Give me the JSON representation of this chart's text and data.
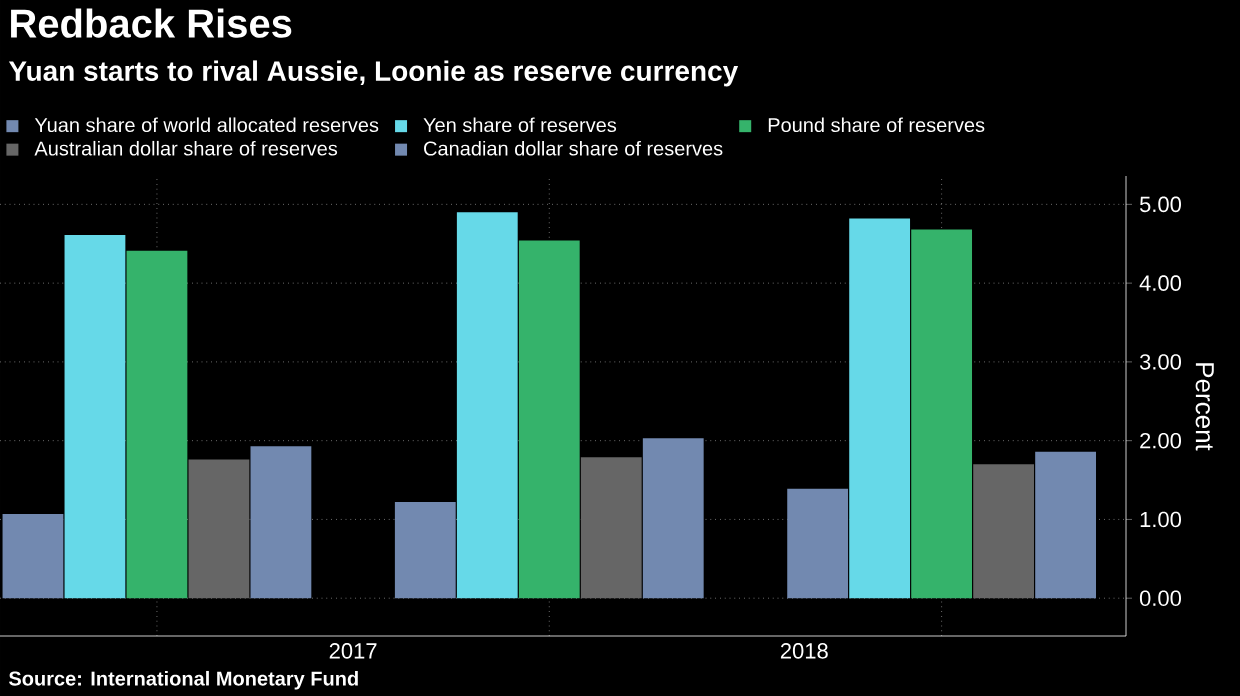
{
  "chart_data": {
    "type": "bar",
    "title": "Redback Rises",
    "subtitle": "Yuan starts to rival Aussie, Loonie as reserve currency",
    "ylabel": "Percent",
    "categories": [
      null,
      null,
      null
    ],
    "series": [
      {
        "name": "Yuan share of world allocated reserves",
        "color": "#7289b0",
        "values": [
          1.07,
          1.22,
          1.39
        ]
      },
      {
        "name": "Yen share of reserves",
        "color": "#66d9e8",
        "values": [
          4.61,
          4.9,
          4.82
        ]
      },
      {
        "name": "Pound share of reserves",
        "color": "#35b36b",
        "values": [
          4.41,
          4.54,
          4.68
        ]
      },
      {
        "name": "Australian dollar share of reserves",
        "color": "#666666",
        "values": [
          1.76,
          1.79,
          1.7
        ]
      },
      {
        "name": "Canadian dollar share of reserves",
        "color": "#7289b0",
        "values": [
          1.93,
          2.03,
          1.86
        ]
      }
    ],
    "ylim": [
      -0.48,
      5.36
    ],
    "yticks": [
      {
        "value": 0,
        "label": "0.00"
      },
      {
        "value": 1,
        "label": "1.00"
      },
      {
        "value": 2,
        "label": "2.00"
      },
      {
        "value": 3,
        "label": "3.00"
      },
      {
        "value": 4,
        "label": "4.00"
      },
      {
        "value": 5,
        "label": "5.00"
      }
    ],
    "grid": true,
    "legend": "top",
    "annotations": [
      "Source: International Monetary Fund",
      "2017",
      "2018"
    ]
  }
}
